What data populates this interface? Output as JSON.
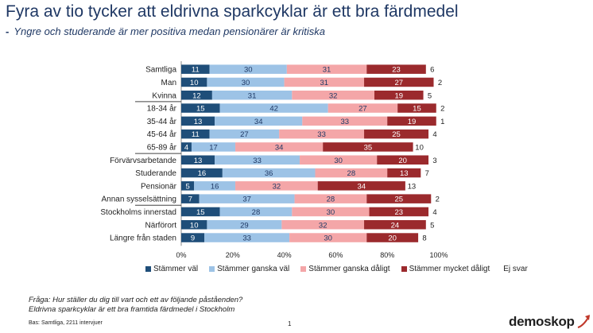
{
  "title": "Fyra av tio tycker att eldrivna sparkcyklar är ett bra färdmedel",
  "subtitle_dash": "-",
  "subtitle": "Yngre och studerande är mer positiva medan pensionärer är kritiska",
  "colors": {
    "stammer_val": "#1f4e79",
    "stammer_ganska_val": "#9dc3e6",
    "stammer_ganska_daligt": "#f4a6a8",
    "stammer_mycket_daligt": "#9b2a2d",
    "ej_svar": "#ffffff",
    "text": "#1f3864"
  },
  "chart_data": {
    "type": "bar",
    "orientation": "horizontal",
    "stacked": true,
    "categories": [
      "Samtliga",
      "Man",
      "Kvinna",
      "18-34 år",
      "35-44 år",
      "45-64 år",
      "65-89 år",
      "Förvärvsarbetande",
      "Studerande",
      "Pensionär",
      "Annan sysselsättning",
      "Stockholms innerstad",
      "Närförort",
      "Längre från staden"
    ],
    "series": [
      {
        "name": "Stämmer väl",
        "values": [
          11,
          10,
          12,
          15,
          13,
          11,
          4,
          13,
          16,
          5,
          7,
          15,
          10,
          9
        ]
      },
      {
        "name": "Stämmer ganska väl",
        "values": [
          30,
          30,
          31,
          42,
          34,
          27,
          17,
          33,
          36,
          16,
          37,
          28,
          29,
          33
        ]
      },
      {
        "name": "Stämmer ganska dåligt",
        "values": [
          31,
          31,
          32,
          27,
          33,
          33,
          34,
          30,
          28,
          32,
          28,
          30,
          32,
          30
        ]
      },
      {
        "name": "Stämmer mycket dåligt",
        "values": [
          23,
          27,
          19,
          15,
          19,
          25,
          35,
          20,
          13,
          34,
          25,
          23,
          24,
          20
        ]
      },
      {
        "name": "Ej svar",
        "values": [
          6,
          2,
          5,
          2,
          1,
          4,
          10,
          3,
          7,
          13,
          2,
          4,
          5,
          8
        ]
      }
    ],
    "xlim": [
      0,
      100
    ],
    "x_ticks": [
      "0%",
      "20%",
      "40%",
      "60%",
      "80%",
      "100%"
    ],
    "group_separators_after": [
      2,
      6,
      10
    ],
    "legend_position": "bottom"
  },
  "footer": {
    "question_line1": "Fråga: Hur ställer du dig till vart och ett av följande påståenden?",
    "question_line2": "Eldrivna sparkcyklar är ett bra framtida färdmedel i Stockholm",
    "base": "Bas: Samtliga, 2211 intervjuer",
    "page_number": "1",
    "logo": "demoskop"
  }
}
